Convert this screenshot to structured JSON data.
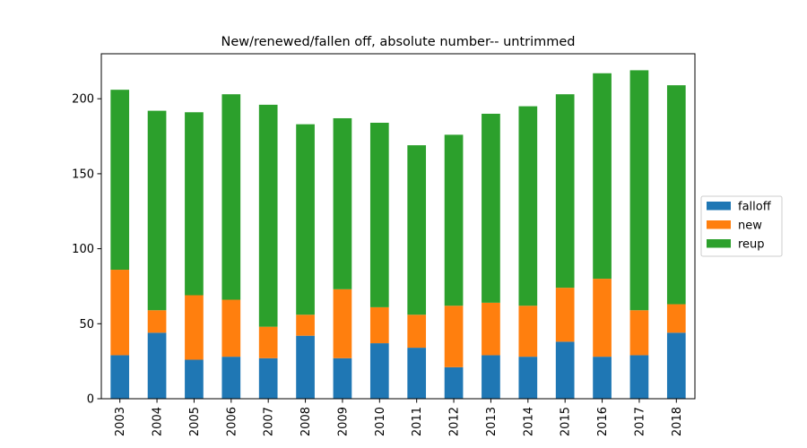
{
  "chart_data": {
    "type": "bar",
    "stacked": true,
    "title": "New/renewed/fallen off, absolute number-- untrimmed",
    "xlabel": "",
    "ylabel": "",
    "ylim": [
      0,
      230
    ],
    "yticks": [
      "0",
      "50",
      "100",
      "150",
      "200"
    ],
    "categories": [
      "2003",
      "2004",
      "2005",
      "2006",
      "2007",
      "2008",
      "2009",
      "2010",
      "2011",
      "2012",
      "2013",
      "2014",
      "2015",
      "2016",
      "2017",
      "2018"
    ],
    "series": [
      {
        "name": "falloff",
        "color": "#1f77b4",
        "values": [
          29,
          44,
          26,
          28,
          27,
          42,
          27,
          37,
          34,
          21,
          29,
          28,
          38,
          28,
          29,
          44
        ]
      },
      {
        "name": "new",
        "color": "#ff7f0e",
        "values": [
          57,
          15,
          43,
          38,
          21,
          14,
          46,
          24,
          22,
          41,
          35,
          34,
          36,
          52,
          30,
          19
        ]
      },
      {
        "name": "reup",
        "color": "#2ca02c",
        "values": [
          120,
          133,
          122,
          137,
          148,
          127,
          114,
          123,
          113,
          114,
          126,
          133,
          129,
          137,
          160,
          146
        ]
      }
    ],
    "grid": false,
    "legend_position": "right"
  }
}
